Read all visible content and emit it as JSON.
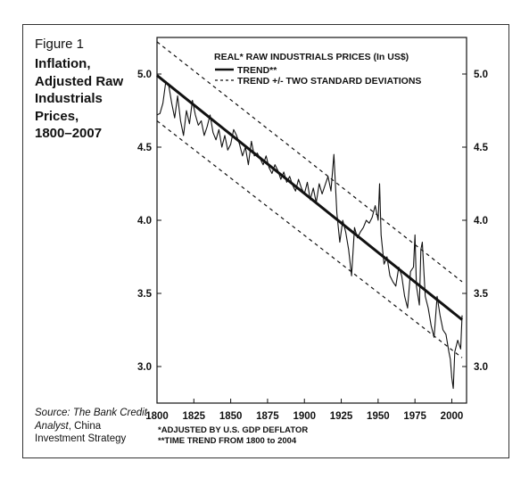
{
  "figure": {
    "label": "Figure 1",
    "title_lines": [
      "Inflation,",
      "Adjusted Raw",
      "Industrials",
      "Prices,",
      "1800–2007"
    ]
  },
  "source": {
    "prefix": "Source: ",
    "italic": "The Bank Credit Analyst",
    "suffix": ", China Investment Strategy"
  },
  "chart_data": {
    "type": "line",
    "title": "REAL* RAW INDUSTRIALS PRICES (In US$)",
    "xlabel": "",
    "ylabel": "",
    "xlim": [
      1800,
      2010
    ],
    "ylim": [
      2.75,
      5.25
    ],
    "x_ticks": [
      1800,
      1825,
      1850,
      1875,
      1900,
      1925,
      1950,
      1975,
      2000
    ],
    "y_ticks": [
      3.0,
      3.5,
      4.0,
      4.5,
      5.0
    ],
    "y_tick_labels": [
      "3.0",
      "3.5",
      "4.0",
      "4.5",
      "5.0"
    ],
    "grid": false,
    "legend_position": "top",
    "legend": [
      {
        "label": "TREND**",
        "style": "solid"
      },
      {
        "label": "TREND +/- TWO STANDARD DEVIATIONS",
        "style": "dashed"
      }
    ],
    "series": [
      {
        "style": "thin",
        "x": [
          1800,
          1802,
          1804,
          1806,
          1808,
          1810,
          1812,
          1814,
          1816,
          1818,
          1820,
          1822,
          1824,
          1826,
          1828,
          1830,
          1832,
          1834,
          1836,
          1838,
          1840,
          1842,
          1844,
          1846,
          1848,
          1850,
          1852,
          1854,
          1856,
          1858,
          1860,
          1862,
          1864,
          1866,
          1868,
          1870,
          1872,
          1874,
          1876,
          1878,
          1880,
          1882,
          1884,
          1886,
          1888,
          1890,
          1892,
          1894,
          1896,
          1898,
          1900,
          1902,
          1904,
          1906,
          1908,
          1910,
          1912,
          1914,
          1916,
          1918,
          1920,
          1922,
          1924,
          1926,
          1928,
          1930,
          1932,
          1934,
          1936,
          1938,
          1940,
          1942,
          1944,
          1946,
          1948,
          1950,
          1951,
          1952,
          1954,
          1956,
          1958,
          1960,
          1962,
          1964,
          1966,
          1968,
          1970,
          1972,
          1974,
          1975,
          1976,
          1978,
          1979,
          1980,
          1982,
          1984,
          1986,
          1988,
          1990,
          1992,
          1994,
          1996,
          1998,
          1999,
          2000,
          2001,
          2002,
          2004,
          2006,
          2007
        ],
        "y": [
          4.72,
          4.73,
          4.8,
          4.95,
          4.92,
          4.8,
          4.7,
          4.85,
          4.68,
          4.58,
          4.75,
          4.66,
          4.82,
          4.72,
          4.65,
          4.68,
          4.58,
          4.64,
          4.72,
          4.6,
          4.55,
          4.62,
          4.5,
          4.58,
          4.48,
          4.52,
          4.62,
          4.58,
          4.52,
          4.44,
          4.5,
          4.38,
          4.54,
          4.44,
          4.46,
          4.42,
          4.38,
          4.44,
          4.36,
          4.32,
          4.38,
          4.34,
          4.28,
          4.33,
          4.26,
          4.3,
          4.24,
          4.2,
          4.28,
          4.22,
          4.18,
          4.26,
          4.14,
          4.22,
          4.12,
          4.25,
          4.18,
          4.24,
          4.3,
          4.2,
          4.45,
          4.05,
          3.85,
          4.0,
          3.92,
          3.8,
          3.62,
          3.95,
          3.88,
          3.92,
          3.95,
          4.0,
          3.98,
          4.02,
          4.1,
          4.0,
          4.25,
          3.9,
          3.7,
          3.75,
          3.62,
          3.58,
          3.55,
          3.68,
          3.62,
          3.48,
          3.4,
          3.65,
          3.68,
          3.9,
          3.55,
          3.42,
          3.8,
          3.85,
          3.48,
          3.4,
          3.28,
          3.2,
          3.48,
          3.35,
          3.25,
          3.22,
          3.1,
          3.05,
          2.92,
          2.85,
          3.1,
          3.18,
          3.12,
          3.35
        ]
      },
      {
        "style": "trend",
        "x": [
          1800,
          2007
        ],
        "y": [
          4.99,
          3.32
        ]
      },
      {
        "style": "dashed-upper",
        "x": [
          1800,
          2007
        ],
        "y": [
          5.22,
          3.58
        ]
      },
      {
        "style": "dashed-lower",
        "x": [
          1800,
          2007
        ],
        "y": [
          4.68,
          3.06
        ]
      }
    ],
    "footnotes": [
      "*ADJUSTED BY U.S. GDP DEFLATOR",
      "**TIME TREND FROM 1800 to 2004"
    ]
  }
}
